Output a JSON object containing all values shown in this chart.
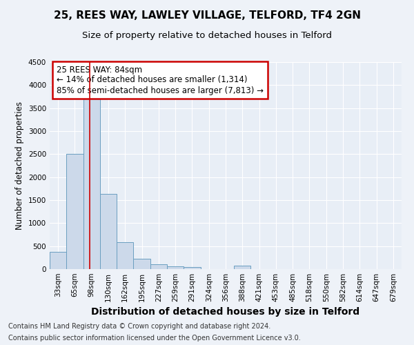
{
  "title_line1": "25, REES WAY, LAWLEY VILLAGE, TELFORD, TF4 2GN",
  "title_line2": "Size of property relative to detached houses in Telford",
  "xlabel": "Distribution of detached houses by size in Telford",
  "ylabel": "Number of detached properties",
  "bar_color": "#ccd9ea",
  "bar_edge_color": "#6a9ec0",
  "categories": [
    "33sqm",
    "65sqm",
    "98sqm",
    "130sqm",
    "162sqm",
    "195sqm",
    "227sqm",
    "259sqm",
    "291sqm",
    "324sqm",
    "356sqm",
    "388sqm",
    "421sqm",
    "453sqm",
    "485sqm",
    "518sqm",
    "550sqm",
    "582sqm",
    "614sqm",
    "647sqm",
    "679sqm"
  ],
  "values": [
    370,
    2500,
    3700,
    1630,
    590,
    220,
    100,
    60,
    40,
    0,
    0,
    70,
    0,
    0,
    0,
    0,
    0,
    0,
    0,
    0,
    0
  ],
  "ylim": [
    0,
    4500
  ],
  "yticks": [
    0,
    500,
    1000,
    1500,
    2000,
    2500,
    3000,
    3500,
    4000,
    4500
  ],
  "property_line_x": 1.87,
  "annotation_text": "25 REES WAY: 84sqm\n← 14% of detached houses are smaller (1,314)\n85% of semi-detached houses are larger (7,813) →",
  "annotation_box_facecolor": "#ffffff",
  "annotation_box_edgecolor": "#cc0000",
  "footer_line1": "Contains HM Land Registry data © Crown copyright and database right 2024.",
  "footer_line2": "Contains public sector information licensed under the Open Government Licence v3.0.",
  "bg_color": "#eef2f8",
  "plot_bg_color": "#e8eef6",
  "grid_color": "#ffffff",
  "title_fontsize": 11,
  "subtitle_fontsize": 9.5,
  "ylabel_fontsize": 8.5,
  "xlabel_fontsize": 10,
  "tick_fontsize": 7.5,
  "annotation_fontsize": 8.5,
  "footer_fontsize": 7
}
